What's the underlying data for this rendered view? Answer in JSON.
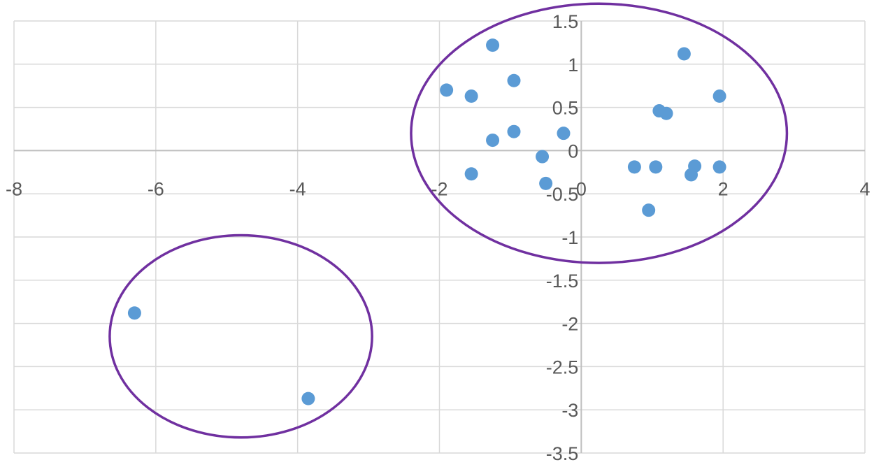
{
  "chart_data": {
    "type": "scatter",
    "xlim": [
      -8,
      4
    ],
    "ylim": [
      -3.5,
      1.5
    ],
    "x_tick_labels": [
      "-8",
      "-6",
      "-4",
      "-2",
      "0",
      "2",
      "4"
    ],
    "y_tick_labels": [
      "1.5",
      "1",
      "0.5",
      "0",
      "-0.5",
      "-1",
      "-1.5",
      "-2",
      "-2.5",
      "-3",
      "-3.5"
    ],
    "grid": true,
    "series": [
      {
        "color": "#5b9bd5",
        "points": [
          {
            "x": -6.3,
            "y": -1.88
          },
          {
            "x": -3.85,
            "y": -2.87
          },
          {
            "x": -1.25,
            "y": 1.22
          },
          {
            "x": -1.9,
            "y": 0.7
          },
          {
            "x": -1.55,
            "y": 0.63
          },
          {
            "x": -0.95,
            "y": 0.81
          },
          {
            "x": -0.95,
            "y": 0.22
          },
          {
            "x": -1.25,
            "y": 0.12
          },
          {
            "x": -0.25,
            "y": 0.2
          },
          {
            "x": -0.55,
            "y": -0.07
          },
          {
            "x": -1.55,
            "y": -0.27
          },
          {
            "x": -0.5,
            "y": -0.38
          },
          {
            "x": 1.45,
            "y": 1.12
          },
          {
            "x": 1.95,
            "y": 0.63
          },
          {
            "x": 1.1,
            "y": 0.46
          },
          {
            "x": 1.2,
            "y": 0.43
          },
          {
            "x": 0.75,
            "y": -0.19
          },
          {
            "x": 1.05,
            "y": -0.19
          },
          {
            "x": 1.6,
            "y": -0.18
          },
          {
            "x": 1.55,
            "y": -0.28
          },
          {
            "x": 1.95,
            "y": -0.19
          },
          {
            "x": 0.95,
            "y": -0.69
          }
        ]
      }
    ],
    "annotations": [
      {
        "shape": "ellipse",
        "color": "#7030a0",
        "center": {
          "x": 0.25,
          "y": 0.2
        },
        "rx": 2.65,
        "ry": 1.5
      },
      {
        "shape": "ellipse",
        "color": "#7030a0",
        "center": {
          "x": -4.8,
          "y": -2.15
        },
        "rx": 1.85,
        "ry": 1.17
      }
    ]
  }
}
